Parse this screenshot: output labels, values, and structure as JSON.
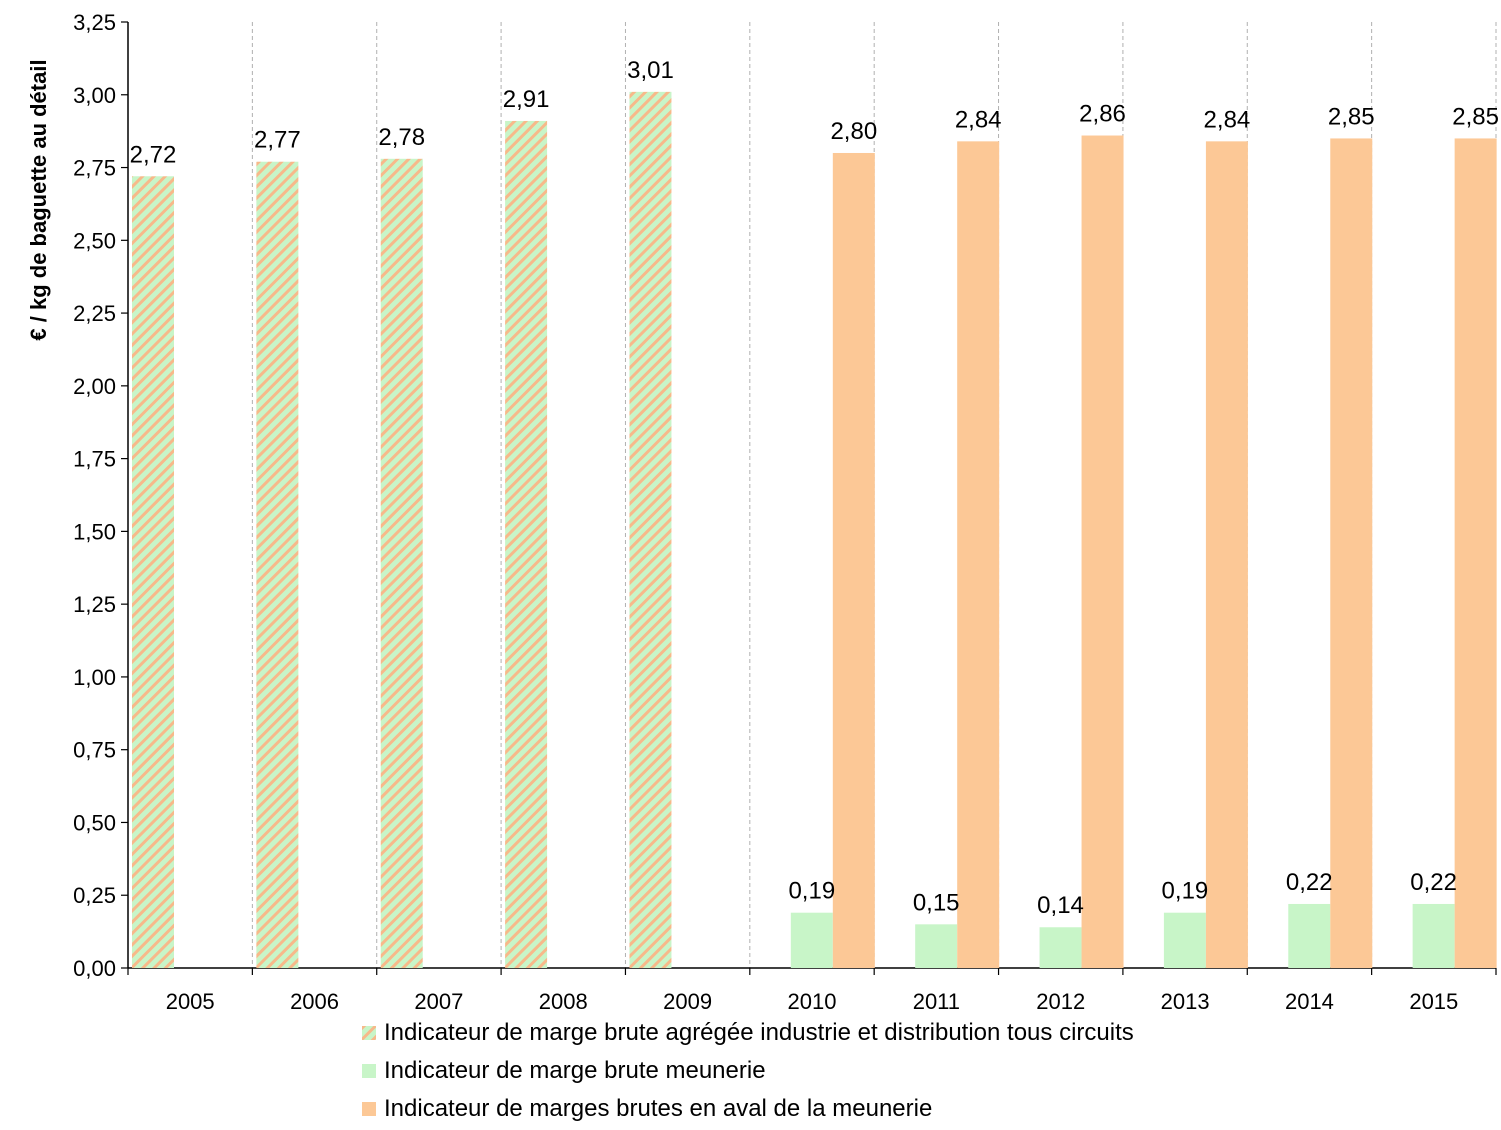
{
  "chart_data": {
    "type": "bar",
    "title": "",
    "xlabel": "",
    "ylabel": "€ / kg de baguette au détail",
    "ylim": [
      0,
      3.25
    ],
    "yticks": [
      "0,00",
      "0,25",
      "0,50",
      "0,75",
      "1,00",
      "1,25",
      "1,50",
      "1,75",
      "2,00",
      "2,25",
      "2,50",
      "2,75",
      "3,00",
      "3,25"
    ],
    "grid": "vertical dashed",
    "legend_position": "bottom",
    "categories": [
      "2005",
      "2006",
      "2007",
      "2008",
      "2009",
      "2010",
      "2011",
      "2012",
      "2013",
      "2014",
      "2015"
    ],
    "series": [
      {
        "name": "Indicateur de marge brute agrégée industrie et distribution tous circuits",
        "values": [
          2.72,
          2.77,
          2.78,
          2.91,
          3.01,
          null,
          null,
          null,
          null,
          null,
          null
        ],
        "labels": [
          "2,72",
          "2,77",
          "2,78",
          "2,91",
          "3,01",
          "",
          "",
          "",
          "",
          "",
          ""
        ],
        "color": "#c8f5c8",
        "stripe_color": "#f7b98a",
        "pattern": "diagonal-stripes"
      },
      {
        "name": "Indicateur de marge brute meunerie",
        "values": [
          null,
          null,
          null,
          null,
          null,
          0.19,
          0.15,
          0.14,
          0.19,
          0.22,
          0.22
        ],
        "labels": [
          "",
          "",
          "",
          "",
          "",
          "0,19",
          "0,15",
          "0,14",
          "0,19",
          "0,22",
          "0,22"
        ],
        "color": "#c8f5c8"
      },
      {
        "name": "Indicateur de marges brutes en aval de la meunerie",
        "values": [
          null,
          null,
          null,
          null,
          null,
          2.8,
          2.84,
          2.86,
          2.84,
          2.85,
          2.85
        ],
        "labels": [
          "",
          "",
          "",
          "",
          "",
          "2,80",
          "2,84",
          "2,86",
          "2,84",
          "2,85",
          "2,85"
        ],
        "color": "#fcc896"
      }
    ]
  }
}
